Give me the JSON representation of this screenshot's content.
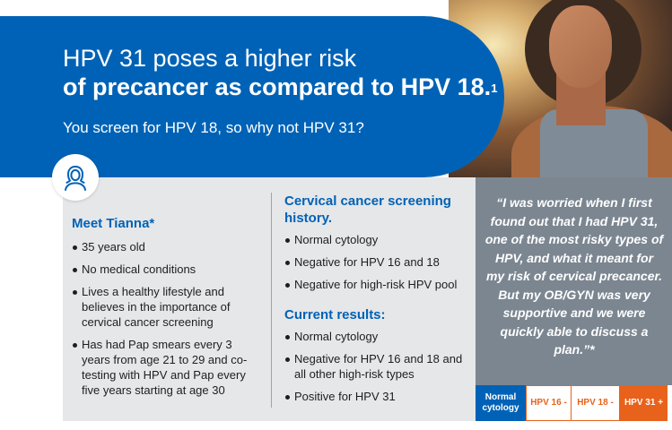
{
  "header": {
    "title_line1": "HPV 31 poses a higher risk",
    "title_line2": "of precancer as compared to HPV 18.",
    "title_ref": "1",
    "subtitle": "You screen for HPV 18, so why not HPV 31?"
  },
  "patient": {
    "heading": "Meet Tianna*",
    "items": [
      "35 years old",
      "No medical conditions",
      "Lives a healthy lifestyle and believes in the importance of cervical cancer screening",
      "Has had Pap smears every 3 years from age 21 to 29 and co-testing with HPV and Pap every five years starting at age 30"
    ]
  },
  "history": {
    "heading": "Cervical cancer screening history.",
    "items": [
      "Normal cytology",
      "Negative for HPV 16 and 18",
      "Negative for high-risk HPV pool"
    ]
  },
  "current": {
    "heading": "Current results:",
    "items": [
      "Normal cytology",
      "Negative for HPV 16 and 18 and all other high-risk types",
      "Positive for HPV 31"
    ]
  },
  "quote": {
    "text": "“I was worried when I first found out that I had HPV 31, one of the most risky types of HPV, and what it meant for my risk of cervical precancer. But my OB/GYN was very supportive and we were quickly able to discuss a plan.”*"
  },
  "results_tags": [
    "Normal cytology",
    "HPV 16 -",
    "HPV 18 -",
    "HPV 31 +"
  ],
  "colors": {
    "brand_blue": "#0062b6",
    "panel_grey": "#e5e7e9",
    "quote_grey": "#7b8691",
    "accent_orange": "#e8621c"
  },
  "icons": {
    "patient": "woman-avatar-icon",
    "photo": "woman-portrait-photo"
  }
}
